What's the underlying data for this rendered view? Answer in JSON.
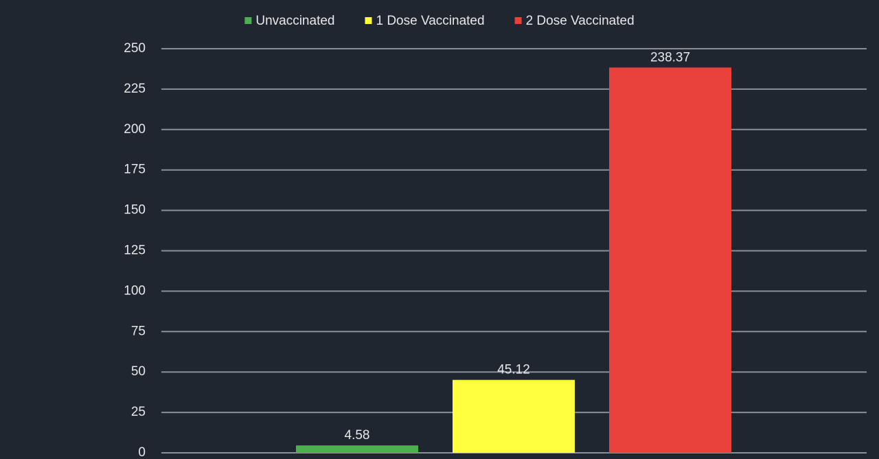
{
  "chart_data": {
    "type": "bar",
    "categories": [
      null
    ],
    "series": [
      {
        "name": "Unvaccinated",
        "color": "#4caf50",
        "values": [
          4.58
        ]
      },
      {
        "name": "1 Dose Vaccinated",
        "color": "#ffff40",
        "values": [
          45.12
        ]
      },
      {
        "name": "2 Dose Vaccinated",
        "color": "#e8403a",
        "values": [
          238.37
        ]
      }
    ],
    "ylim": [
      0,
      250
    ],
    "yticks": [
      0,
      25,
      50,
      75,
      100,
      125,
      150,
      175,
      200,
      225,
      250
    ],
    "grid": true,
    "legend": "top"
  }
}
